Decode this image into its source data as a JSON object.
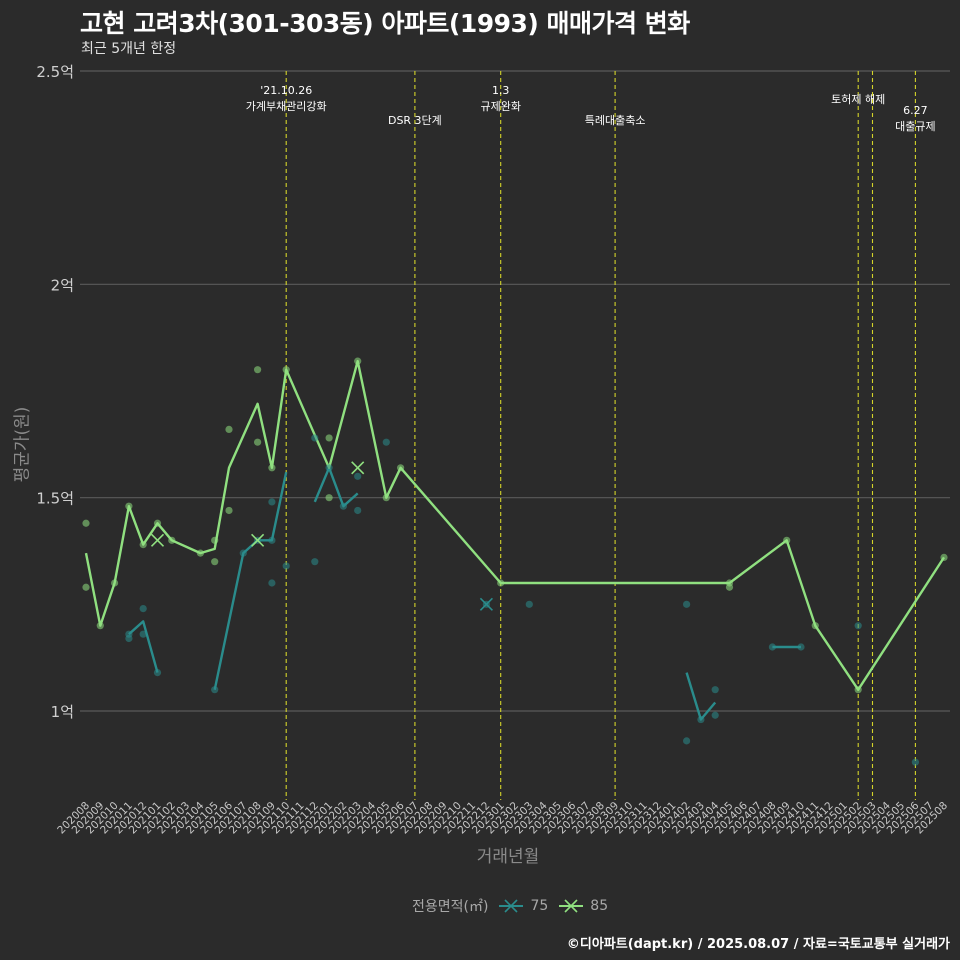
{
  "title": "고현 고려3차(301-303동) 아파트(1993) 매매가격 변화",
  "subtitle": "최근 5개년 한정",
  "caption": "©디아파트(dapt.kr) / 2025.08.07 / 자료=국토교통부 실거래가",
  "colors": {
    "background": "#2b2b2b",
    "grid": "#5a5a5a",
    "event_line": "#d4d42a",
    "series_75": "#2a8c8c",
    "series_85": "#90e080"
  },
  "chart_data": {
    "type": "line",
    "xlabel": "거래년월",
    "ylabel": "평균가(원)",
    "x_categories": [
      "202008",
      "202009",
      "202010",
      "202011",
      "202012",
      "202101",
      "202102",
      "202103",
      "202104",
      "202105",
      "202106",
      "202107",
      "202108",
      "202109",
      "202110",
      "202111",
      "202112",
      "202201",
      "202202",
      "202203",
      "202204",
      "202205",
      "202206",
      "202207",
      "202208",
      "202209",
      "202210",
      "202211",
      "202212",
      "202301",
      "202302",
      "202303",
      "202304",
      "202305",
      "202306",
      "202307",
      "202308",
      "202309",
      "202310",
      "202311",
      "202312",
      "202401",
      "202402",
      "202403",
      "202404",
      "202405",
      "202406",
      "202407",
      "202408",
      "202409",
      "202410",
      "202411",
      "202412",
      "202501",
      "202502",
      "202503",
      "202504",
      "202505",
      "202506",
      "202507",
      "202508"
    ],
    "ylim": [
      0.8,
      2.5
    ],
    "y_ticks": [
      {
        "value": 1.0,
        "label": "1억"
      },
      {
        "value": 1.5,
        "label": "1.5억"
      },
      {
        "value": 2.0,
        "label": "2억"
      },
      {
        "value": 2.5,
        "label": "2.5억"
      }
    ],
    "grid": true,
    "legend": {
      "title": "전용면적(㎡)",
      "position": "bottom",
      "entries": [
        "75",
        "85"
      ]
    },
    "events": [
      {
        "x": "202110",
        "lines": [
          "'21.10.26",
          "가계부채관리강화"
        ],
        "row": 1
      },
      {
        "x": "202207",
        "lines": [
          "DSR 3단계"
        ],
        "row": 3
      },
      {
        "x": "202301",
        "lines": [
          "1.3",
          "규제완화"
        ],
        "row": 1
      },
      {
        "x": "202309",
        "lines": [
          "특례대출축소"
        ],
        "row": 3
      },
      {
        "x": "202502",
        "lines": [
          "토허제 해제"
        ],
        "row": 2
      },
      {
        "x": "202503",
        "lines": [],
        "row": 2
      },
      {
        "x": "202506",
        "lines": [
          "6.27",
          "대출규제"
        ],
        "row": 2.8
      }
    ],
    "series": [
      {
        "name": "75",
        "line_segments": [
          [
            [
              "202011",
              1.18
            ],
            [
              "202012",
              1.21
            ],
            [
              "202101",
              1.09
            ]
          ],
          [
            [
              "202105",
              1.05
            ],
            [
              "202107",
              1.37
            ],
            [
              "202108",
              1.4
            ],
            [
              "202109",
              1.4
            ],
            [
              "202110",
              1.56
            ]
          ],
          [
            [
              "202112",
              1.49
            ],
            [
              "202201",
              1.57
            ],
            [
              "202202",
              1.48
            ],
            [
              "202203",
              1.51
            ]
          ],
          [
            [
              "202402",
              1.09
            ],
            [
              "202403",
              0.98
            ],
            [
              "202404",
              1.02
            ]
          ],
          [
            [
              "202408",
              1.15
            ],
            [
              "202410",
              1.15
            ]
          ]
        ],
        "points": [
          [
            "202011",
            1.17
          ],
          [
            "202011",
            1.18
          ],
          [
            "202012",
            1.24
          ],
          [
            "202012",
            1.18
          ],
          [
            "202101",
            1.09
          ],
          [
            "202105",
            1.05
          ],
          [
            "202107",
            1.37
          ],
          [
            "202108",
            1.4
          ],
          [
            "202109",
            1.49
          ],
          [
            "202109",
            1.3
          ],
          [
            "202109",
            1.4
          ],
          [
            "202110",
            1.34
          ],
          [
            "202112",
            1.35
          ],
          [
            "202112",
            1.64
          ],
          [
            "202201",
            1.57
          ],
          [
            "202202",
            1.48
          ],
          [
            "202203",
            1.55
          ],
          [
            "202203",
            1.47
          ],
          [
            "202205",
            1.63
          ],
          [
            "202212",
            1.25
          ],
          [
            "202303",
            1.25
          ],
          [
            "202402",
            1.25
          ],
          [
            "202402",
            0.93
          ],
          [
            "202403",
            0.98
          ],
          [
            "202404",
            1.05
          ],
          [
            "202404",
            0.99
          ],
          [
            "202408",
            1.15
          ],
          [
            "202410",
            1.15
          ],
          [
            "202502",
            1.2
          ],
          [
            "202506",
            0.88
          ]
        ],
        "x_marks": [
          [
            "202212",
            1.25
          ]
        ]
      },
      {
        "name": "85",
        "line_segments": [
          [
            [
              "202008",
              1.37
            ],
            [
              "202009",
              1.2
            ],
            [
              "202010",
              1.3
            ],
            [
              "202011",
              1.48
            ],
            [
              "202012",
              1.39
            ],
            [
              "202101",
              1.44
            ],
            [
              "202102",
              1.4
            ],
            [
              "202104",
              1.37
            ],
            [
              "202105",
              1.38
            ],
            [
              "202106",
              1.57
            ],
            [
              "202108",
              1.72
            ],
            [
              "202109",
              1.57
            ],
            [
              "202110",
              1.8
            ],
            [
              "202201",
              1.57
            ],
            [
              "202203",
              1.82
            ],
            [
              "202205",
              1.5
            ],
            [
              "202206",
              1.57
            ],
            [
              "202301",
              1.3
            ],
            [
              "202405",
              1.3
            ],
            [
              "202409",
              1.4
            ],
            [
              "202411",
              1.2
            ],
            [
              "202502",
              1.05
            ],
            [
              "202508",
              1.36
            ]
          ]
        ],
        "points": [
          [
            "202008",
            1.44
          ],
          [
            "202008",
            1.29
          ],
          [
            "202009",
            1.2
          ],
          [
            "202010",
            1.3
          ],
          [
            "202011",
            1.48
          ],
          [
            "202012",
            1.39
          ],
          [
            "202101",
            1.44
          ],
          [
            "202102",
            1.4
          ],
          [
            "202104",
            1.37
          ],
          [
            "202105",
            1.4
          ],
          [
            "202105",
            1.35
          ],
          [
            "202106",
            1.66
          ],
          [
            "202106",
            1.47
          ],
          [
            "202108",
            1.8
          ],
          [
            "202108",
            1.63
          ],
          [
            "202109",
            1.57
          ],
          [
            "202110",
            1.8
          ],
          [
            "202201",
            1.64
          ],
          [
            "202201",
            1.5
          ],
          [
            "202203",
            1.82
          ],
          [
            "202205",
            1.5
          ],
          [
            "202206",
            1.57
          ],
          [
            "202301",
            1.3
          ],
          [
            "202405",
            1.3
          ],
          [
            "202405",
            1.29
          ],
          [
            "202409",
            1.4
          ],
          [
            "202411",
            1.2
          ],
          [
            "202502",
            1.05
          ],
          [
            "202508",
            1.36
          ]
        ],
        "x_marks": [
          [
            "202101",
            1.4
          ],
          [
            "202108",
            1.4
          ],
          [
            "202203",
            1.57
          ]
        ]
      }
    ]
  }
}
